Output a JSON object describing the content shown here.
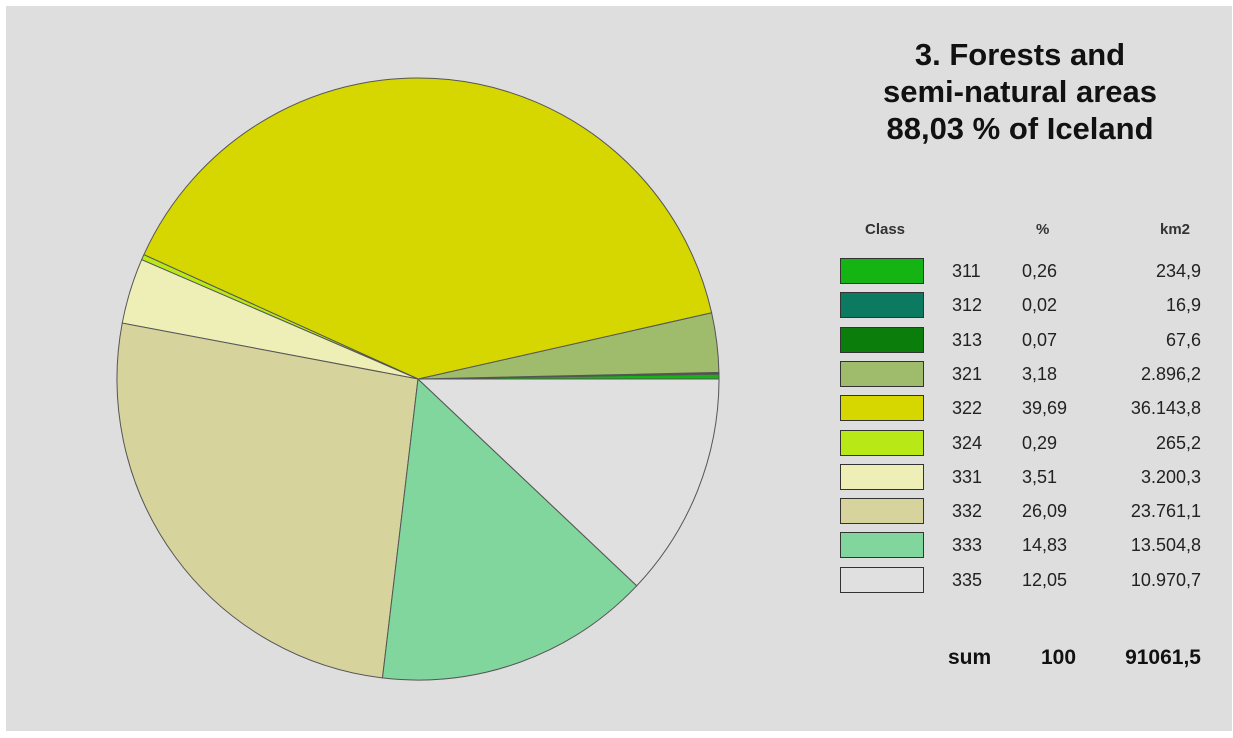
{
  "title_lines": [
    "3. Forests and",
    "semi-natural areas",
    "88,03 % of Iceland"
  ],
  "legend": {
    "header_class": "Class",
    "header_pct": "%",
    "header_km2": "km2"
  },
  "sum_row": {
    "label": "sum",
    "pct": "100",
    "km2": "91061,5"
  },
  "chart_data": {
    "type": "pie",
    "title": "3. Forests and semi-natural areas 88,03 % of Iceland",
    "start_angle_deg": 0,
    "direction": "counterclockwise",
    "slices": [
      {
        "label": "311",
        "value": 0.26,
        "pct_text": "0,26",
        "km2": "234,9",
        "color": "#14b414"
      },
      {
        "label": "312",
        "value": 0.02,
        "pct_text": "0,02",
        "km2": "16,9",
        "color": "#0c7a60"
      },
      {
        "label": "313",
        "value": 0.07,
        "pct_text": "0,07",
        "km2": "67,6",
        "color": "#0b7d0b"
      },
      {
        "label": "321",
        "value": 3.18,
        "pct_text": "3,18",
        "km2": "2.896,2",
        "color": "#9fbb6c"
      },
      {
        "label": "322",
        "value": 39.69,
        "pct_text": "39,69",
        "km2": "36.143,8",
        "color": "#d6d600"
      },
      {
        "label": "324",
        "value": 0.29,
        "pct_text": "0,29",
        "km2": "265,2",
        "color": "#b8e815"
      },
      {
        "label": "331",
        "value": 3.51,
        "pct_text": "3,51",
        "km2": "3.200,3",
        "color": "#eeefb6"
      },
      {
        "label": "332",
        "value": 26.09,
        "pct_text": "26,09",
        "km2": "23.761,1",
        "color": "#d6d39d"
      },
      {
        "label": "333",
        "value": 14.83,
        "pct_text": "14,83",
        "km2": "13.504,8",
        "color": "#80d69c"
      },
      {
        "label": "335",
        "value": 12.05,
        "pct_text": "12,05",
        "km2": "10.970,7",
        "color": "#e0e0e0"
      }
    ]
  }
}
